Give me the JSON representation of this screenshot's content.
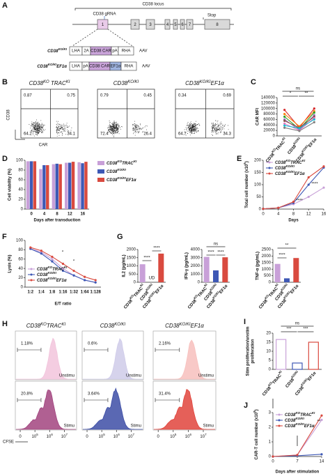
{
  "diagram": {
    "label": "A",
    "title": "CD38 locus",
    "grna": "CD38 gRNA",
    "stop": "Stop",
    "exons": [
      "1",
      "2",
      "3",
      "4",
      "5",
      "6",
      "7",
      "8"
    ],
    "constructs": [
      {
        "name": [
          {
            "t": "CD38"
          },
          {
            "sup": "KO/KI"
          }
        ],
        "parts": [
          "LHA",
          "2A",
          "CD38 CAR",
          "pA",
          "RHA"
        ],
        "vector": "AAV"
      },
      {
        "name": [
          {
            "t": "CD38"
          },
          {
            "sup": "KO/KI"
          },
          {
            "t": "EF1α"
          }
        ],
        "parts": [
          "LHA",
          "pA",
          "CD38 CAR",
          "EF1α",
          "RHA"
        ],
        "vector": "AAV"
      }
    ]
  },
  "flow": {
    "label": "B",
    "xlabel": "CAR",
    "ylabel": "CD38",
    "plots": [
      {
        "title": [
          {
            "t": "CD38"
          },
          {
            "sup": "KO"
          },
          {
            "t": " TRAC"
          },
          {
            "sup": "KI"
          }
        ],
        "quadrants": [
          0.87,
          0.75,
          64.2,
          34.1
        ]
      },
      {
        "title": [
          {
            "t": "CD38"
          },
          {
            "sup": "KO/KI"
          }
        ],
        "quadrants": [
          0.79,
          0.45,
          72.4,
          26.4
        ]
      },
      {
        "title": [
          {
            "t": "CD38"
          },
          {
            "sup": "KO/KI"
          },
          {
            "t": "EF1α"
          }
        ],
        "quadrants": [
          0.34,
          0.69,
          64.7,
          34.3
        ]
      }
    ]
  },
  "histograms": {
    "label": "H",
    "xlabel": "CFSE",
    "unstim_label": "Unstimu",
    "stim_label": "Stimu",
    "xticks": [
      [
        {
          "t": "0"
        }
      ],
      [
        {
          "t": "10"
        },
        {
          "sup": "5"
        }
      ],
      [
        {
          "t": "10"
        },
        {
          "sup": "6"
        }
      ],
      [
        {
          "t": "10"
        },
        {
          "sup": "7"
        }
      ]
    ],
    "columns": [
      {
        "title": [
          {
            "t": "CD38"
          },
          {
            "sup": "KO"
          },
          {
            "t": "TRAC"
          },
          {
            "sup": "KI"
          }
        ],
        "unstim": "1.18%",
        "stim": "20.8%",
        "unstim_color": "#f2c4dc",
        "stim_color": "#a2447f"
      },
      {
        "title": [
          {
            "t": "CD38"
          },
          {
            "sup": "KO/KI"
          }
        ],
        "unstim": "0.6%",
        "stim": "3.64%",
        "unstim_color": "#cfcbe9",
        "stim_color": "#3d4ea6"
      },
      {
        "title": [
          {
            "t": "CD38"
          },
          {
            "sup": "KO/KI"
          },
          {
            "t": "EF1α"
          }
        ],
        "unstim": "2.16%",
        "stim": "31.4%",
        "unstim_color": "#f7c0bd",
        "stim_color": "#e0443c"
      }
    ]
  },
  "chart_data": [
    {
      "type": "line",
      "label": "C",
      "ylabel": "CAR MFI",
      "categories": [
        [
          {
            "t": "CD38"
          },
          {
            "sup": "KO"
          },
          {
            "t": "TRAC"
          },
          {
            "sup": "KI"
          }
        ],
        [
          {
            "t": "CD38"
          },
          {
            "sup": "KO/KI"
          }
        ],
        [
          {
            "t": "CD38"
          },
          {
            "sup": "KO/KI"
          },
          {
            "t": "EF1α"
          }
        ]
      ],
      "ylim": [
        0,
        140000
      ],
      "yticks": [
        0,
        20000,
        40000,
        60000,
        80000,
        100000,
        120000,
        140000
      ],
      "annotations": [
        "ns",
        "*",
        "**"
      ],
      "series": [
        {
          "color": "#d62728",
          "values": [
            95000,
            30000,
            100000
          ]
        },
        {
          "color": "#ff7f0e",
          "values": [
            80000,
            35000,
            90000
          ]
        },
        {
          "color": "#2ca02c",
          "values": [
            70000,
            25000,
            85000
          ]
        },
        {
          "color": "#9467bd",
          "values": [
            60000,
            22000,
            75000
          ]
        },
        {
          "color": "#8c564b",
          "values": [
            55000,
            30000,
            70000
          ]
        },
        {
          "color": "#e377c2",
          "values": [
            45000,
            20000,
            65000
          ]
        },
        {
          "color": "#17becf",
          "values": [
            38000,
            28000,
            60000
          ]
        },
        {
          "color": "#7f7f7f",
          "values": [
            30000,
            18000,
            50000
          ]
        }
      ]
    },
    {
      "type": "bar",
      "label": "D",
      "ylabel": "Cell viability (%)",
      "xlabel": "Days after transduction",
      "categories": [
        "0",
        "4",
        "8",
        "12",
        "16"
      ],
      "ylim": [
        0,
        100
      ],
      "yticks": [
        0,
        20,
        40,
        60,
        80,
        100
      ],
      "legend": "outside-right",
      "series": [
        {
          "name": [
            {
              "t": "CD38"
            },
            {
              "sup": "KO"
            },
            {
              "t": "TRAC"
            },
            {
              "sup": "KI"
            }
          ],
          "color": "#c8a0d8",
          "values": [
            98,
            82,
            92,
            95,
            96
          ]
        },
        {
          "name": [
            {
              "t": "CD38"
            },
            {
              "sup": "KO/KI"
            }
          ],
          "color": "#3e58b5",
          "values": [
            98,
            90,
            93,
            95,
            94
          ]
        },
        {
          "name": [
            {
              "t": "CD38"
            },
            {
              "sup": "KO/KI"
            },
            {
              "t": "EF1α"
            }
          ],
          "color": "#d94a3f",
          "values": [
            98,
            90,
            92,
            97,
            97
          ]
        }
      ]
    },
    {
      "type": "line",
      "label": "E",
      "ylabel": [
        {
          "t": "Total cell number (x10"
        },
        {
          "sup": "6"
        },
        {
          "t": ")"
        }
      ],
      "xlabel": "Days",
      "x": [
        0,
        4,
        8,
        12,
        16
      ],
      "xlim": [
        0,
        16
      ],
      "xticks": [
        0,
        4,
        8,
        12,
        16
      ],
      "ylim": [
        0,
        200
      ],
      "yticks": [
        0,
        50,
        100,
        150,
        200
      ],
      "legend": "upper-left",
      "annotations": [
        "****",
        "****"
      ],
      "series": [
        {
          "name": [
            {
              "t": "CD38"
            },
            {
              "sup": "KO"
            },
            {
              "t": "TRAC"
            },
            {
              "sup": "KI"
            }
          ],
          "color": "#c8a0d8",
          "values": [
            1,
            5,
            20,
            50,
            88
          ]
        },
        {
          "name": [
            {
              "t": "CD38"
            },
            {
              "sup": "KO/KI"
            }
          ],
          "color": "#3e58b5",
          "values": [
            1,
            5,
            25,
            100,
            170
          ]
        },
        {
          "name": [
            {
              "t": "CD38"
            },
            {
              "sup": "KO/KI"
            },
            {
              "t": "EF1α"
            }
          ],
          "color": "#d94a3f",
          "values": [
            1,
            5,
            30,
            130,
            175
          ]
        }
      ]
    },
    {
      "type": "line",
      "label": "F",
      "ylabel": "Lysis (%)",
      "xlabel": "E/T ratio",
      "categories": [
        "1:2",
        "1:4",
        "1:8",
        "1:16",
        "1:32",
        "1:64",
        "1:128"
      ],
      "ylim": [
        0,
        100
      ],
      "yticks": [
        0,
        20,
        40,
        60,
        80,
        100
      ],
      "legend": "lower-left",
      "annotations": [
        "*",
        "*"
      ],
      "series": [
        {
          "name": [
            {
              "t": "CD38"
            },
            {
              "sup": "KO"
            },
            {
              "t": "TRAC"
            },
            {
              "sup": "KI"
            }
          ],
          "color": "#c8a0d8",
          "values": [
            82,
            75,
            60,
            40,
            25,
            15,
            10
          ]
        },
        {
          "name": [
            {
              "t": "CD38"
            },
            {
              "sup": "KO/KI"
            }
          ],
          "color": "#3e58b5",
          "values": [
            82,
            72,
            55,
            35,
            25,
            15,
            10
          ]
        },
        {
          "name": [
            {
              "t": "CD38"
            },
            {
              "sup": "KO/KI"
            },
            {
              "t": "EF1α"
            }
          ],
          "color": "#d94a3f",
          "values": [
            85,
            78,
            65,
            50,
            35,
            22,
            15
          ]
        }
      ]
    },
    {
      "type": "bar",
      "label": "G",
      "ylabel": "IL2 (pg/mL)",
      "categories": [
        [
          {
            "t": "CD38"
          },
          {
            "sup": "KO"
          },
          {
            "t": "TRAC"
          },
          {
            "sup": "KI"
          }
        ],
        [
          {
            "t": "CD38"
          },
          {
            "sup": "KO/KI"
          }
        ],
        [
          {
            "t": "CD38"
          },
          {
            "sup": "KO/KI"
          },
          {
            "t": "EF1α"
          }
        ]
      ],
      "values": [
        1100,
        0,
        1750
      ],
      "colors": [
        "#c8a0d8",
        "#3e58b5",
        "#d94a3f"
      ],
      "ylim": [
        0,
        2000
      ],
      "yticks": [
        0,
        500,
        1000,
        1500,
        2000
      ],
      "annotations": [
        "****",
        "****",
        "UD"
      ]
    },
    {
      "type": "bar",
      "ylabel": "IFN-γ (pg/mL)",
      "categories": [
        [
          {
            "t": "CD38"
          },
          {
            "sup": "KO"
          },
          {
            "t": "TRAC"
          },
          {
            "sup": "KI"
          }
        ],
        [
          {
            "t": "CD38"
          },
          {
            "sup": "KO/KI"
          }
        ],
        [
          {
            "t": "CD38"
          },
          {
            "sup": "KO/KI"
          },
          {
            "t": "EF1α"
          }
        ]
      ],
      "values": [
        3100,
        1450,
        3050
      ],
      "colors": [
        "#c8a0d8",
        "#3e58b5",
        "#d94a3f"
      ],
      "ylim": [
        0,
        4000
      ],
      "yticks": [
        0,
        1000,
        2000,
        3000,
        4000
      ],
      "annotations": [
        "ns",
        "****",
        "****"
      ]
    },
    {
      "type": "bar",
      "ylabel": "TNF-α (pg/mL)",
      "categories": [
        [
          {
            "t": "CD38"
          },
          {
            "sup": "KO"
          },
          {
            "t": "TRAC"
          },
          {
            "sup": "KI"
          }
        ],
        [
          {
            "t": "CD38"
          },
          {
            "sup": "KO/KI"
          }
        ],
        [
          {
            "t": "CD38"
          },
          {
            "sup": "KO/KI"
          },
          {
            "t": "EF1α"
          }
        ]
      ],
      "values": [
        1400,
        300,
        1850
      ],
      "colors": [
        "#c8a0d8",
        "#3e58b5",
        "#d94a3f"
      ],
      "ylim": [
        0,
        2500
      ],
      "yticks": [
        0,
        500,
        1000,
        1500,
        2000,
        2500
      ],
      "annotations": [
        "**",
        "****"
      ]
    },
    {
      "type": "bar",
      "label": "I",
      "ylabel": [
        "Stim proliferation/unstim",
        "proliferation"
      ],
      "outline": true,
      "categories": [
        [
          {
            "t": "CD38"
          },
          {
            "sup": "KO"
          },
          {
            "t": "TRAC"
          },
          {
            "sup": "KI"
          }
        ],
        [
          {
            "t": "CD38"
          },
          {
            "sup": "KO/KI"
          }
        ],
        [
          {
            "t": "CD38"
          },
          {
            "sup": "KO/KI"
          },
          {
            "t": "EF1α"
          }
        ]
      ],
      "values": [
        16.5,
        3.5,
        15
      ],
      "colors": [
        "#c8a0d8",
        "#3e58b5",
        "#d94a3f"
      ],
      "ylim": [
        0,
        20
      ],
      "yticks": [
        0,
        5,
        10,
        15,
        20
      ],
      "annotations": [
        "ns",
        "***",
        "***"
      ]
    },
    {
      "type": "line",
      "label": "J",
      "ylabel": [
        {
          "t": "CAR-T cell number (x10"
        },
        {
          "sup": "8"
        },
        {
          "t": ")"
        }
      ],
      "xlabel": "Days after stimulation",
      "x": [
        0,
        7,
        14
      ],
      "xlim": [
        0,
        14
      ],
      "xticks": [
        0,
        7,
        14
      ],
      "ylim": [
        0,
        3
      ],
      "yticks": [
        0,
        1,
        2,
        3
      ],
      "legend": "upper-left",
      "annotations": [
        "**"
      ],
      "series": [
        {
          "name": [
            {
              "t": "CD38"
            },
            {
              "sup": "KO"
            },
            {
              "t": "TRAC"
            },
            {
              "sup": "KI"
            }
          ],
          "color": "#c8a0d8",
          "values": [
            0,
            0.1,
            2.5
          ]
        },
        {
          "name": [
            {
              "t": "CD38"
            },
            {
              "sup": "KO/KI"
            }
          ],
          "color": "#3e58b5",
          "values": [
            0,
            0.05,
            0.15
          ]
        },
        {
          "name": [
            {
              "t": "CD38"
            },
            {
              "sup": "KO/KI"
            },
            {
              "t": "EF1α"
            }
          ],
          "color": "#d94a3f",
          "values": [
            0,
            0.1,
            2.8
          ]
        }
      ]
    }
  ]
}
